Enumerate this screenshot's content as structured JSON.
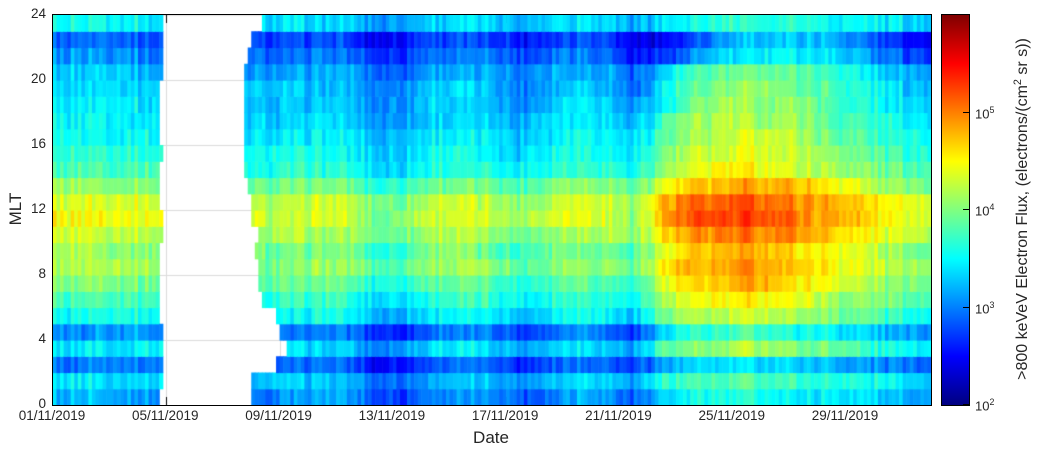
{
  "chart_data": {
    "type": "heatmap",
    "title": "",
    "xlabel": "Date",
    "ylabel": "MLT",
    "x_axis": {
      "range_days": [
        0,
        31
      ],
      "start_date": "01/11/2019",
      "ticks": [
        {
          "day": 0,
          "label": "01/11/2019"
        },
        {
          "day": 4,
          "label": "05/11/2019"
        },
        {
          "day": 8,
          "label": "09/11/2019"
        },
        {
          "day": 12,
          "label": "13/11/2019"
        },
        {
          "day": 16,
          "label": "17/11/2019"
        },
        {
          "day": 20,
          "label": "21/11/2019"
        },
        {
          "day": 24,
          "label": "25/11/2019"
        },
        {
          "day": 28,
          "label": "29/11/2019"
        }
      ]
    },
    "y_axis": {
      "range": [
        0,
        24
      ],
      "ticks": [
        0,
        4,
        8,
        12,
        16,
        20,
        24
      ]
    },
    "grid": true,
    "colorbar": {
      "colormap": "jet",
      "scale": "log",
      "range_log10": [
        2,
        6
      ],
      "ticks": [
        {
          "base": "10",
          "exp": "5",
          "log10": 5
        },
        {
          "base": "10",
          "exp": "4",
          "log10": 4
        },
        {
          "base": "10",
          "exp": "3",
          "log10": 3
        },
        {
          "base": "10",
          "exp": "2",
          "log10": 2
        }
      ],
      "label_pre": ">800 keVeV Electron Flux, (electrons/(cm",
      "label_sup": "2",
      "label_post": " sr s))"
    },
    "data_gap": {
      "start_day": 3.8,
      "end_day_per_mlt": [
        7.0,
        7.0,
        7.9,
        8.2,
        8.0,
        7.9,
        7.4,
        7.2,
        7.3,
        7.1,
        7.2,
        7.0,
        7.0,
        6.9,
        6.7,
        6.8,
        6.7,
        6.8,
        6.7,
        6.7,
        6.8,
        6.9,
        7.0,
        7.4
      ]
    },
    "mlt_bins": [
      0,
      1,
      2,
      3,
      4,
      5,
      6,
      7,
      8,
      9,
      10,
      11,
      12,
      13,
      14,
      15,
      16,
      17,
      18,
      19,
      20,
      21,
      22,
      23
    ],
    "day_bins_note": "columns = daily mean log10 flux, days 01/11/2019 .. 01/12/2019",
    "log10_flux_matrix": [
      [
        3.2,
        3.25,
        3.2,
        3.15,
        null,
        null,
        null,
        3.0,
        3.05,
        3.1,
        3.05,
        2.75,
        2.85,
        3.1,
        3.1,
        3.05,
        2.85,
        3.05,
        3.2,
        3.1,
        2.85,
        3.4,
        3.5,
        3.55,
        3.6,
        3.55,
        3.5,
        3.45,
        3.35,
        3.25,
        3.15
      ],
      [
        3.4,
        3.45,
        3.4,
        3.35,
        null,
        null,
        null,
        3.2,
        3.25,
        3.3,
        3.25,
        2.95,
        3.05,
        3.3,
        3.3,
        3.25,
        3.05,
        3.25,
        3.4,
        3.3,
        3.05,
        3.6,
        3.7,
        3.75,
        3.8,
        3.75,
        3.7,
        3.65,
        3.55,
        3.45,
        3.35
      ],
      [
        3.0,
        3.05,
        3.0,
        2.95,
        null,
        null,
        null,
        null,
        2.85,
        2.9,
        2.85,
        2.55,
        2.65,
        2.9,
        2.9,
        2.85,
        2.65,
        2.85,
        3.0,
        2.9,
        2.65,
        3.2,
        3.3,
        3.35,
        3.4,
        3.35,
        3.3,
        3.25,
        3.15,
        3.05,
        2.95
      ],
      [
        3.5,
        3.55,
        3.5,
        3.45,
        null,
        null,
        null,
        null,
        3.35,
        3.4,
        3.35,
        3.05,
        3.15,
        3.4,
        3.4,
        3.35,
        3.15,
        3.35,
        3.5,
        3.4,
        3.15,
        3.8,
        4.0,
        4.1,
        4.15,
        4.1,
        4.0,
        3.9,
        3.75,
        3.6,
        3.5
      ],
      [
        3.1,
        3.15,
        3.1,
        3.05,
        null,
        null,
        null,
        null,
        2.95,
        3.0,
        2.95,
        2.65,
        2.75,
        3.0,
        3.0,
        2.95,
        2.75,
        2.95,
        3.1,
        3.0,
        2.75,
        3.4,
        3.6,
        3.7,
        3.75,
        3.7,
        3.6,
        3.5,
        3.35,
        3.2,
        3.1
      ],
      [
        3.6,
        3.65,
        3.6,
        3.55,
        null,
        null,
        null,
        null,
        3.45,
        3.5,
        3.45,
        3.15,
        3.25,
        3.5,
        3.5,
        3.45,
        3.25,
        3.45,
        3.6,
        3.5,
        3.25,
        3.9,
        4.1,
        4.2,
        4.25,
        4.2,
        4.1,
        4.0,
        3.85,
        3.7,
        3.6
      ],
      [
        3.8,
        3.85,
        3.8,
        3.75,
        null,
        null,
        null,
        3.6,
        3.65,
        3.7,
        3.65,
        3.35,
        3.45,
        3.7,
        3.7,
        3.65,
        3.45,
        3.65,
        3.8,
        3.7,
        3.45,
        4.1,
        4.4,
        4.5,
        4.55,
        4.5,
        4.35,
        4.2,
        4.05,
        3.9,
        3.8
      ],
      [
        4.0,
        4.05,
        4.0,
        3.95,
        null,
        null,
        null,
        3.8,
        3.85,
        3.9,
        3.85,
        3.55,
        3.65,
        3.9,
        3.9,
        3.85,
        3.65,
        3.85,
        4.0,
        3.9,
        3.65,
        4.3,
        4.6,
        4.7,
        4.75,
        4.7,
        4.55,
        4.4,
        4.25,
        4.1,
        4.0
      ],
      [
        4.2,
        4.25,
        4.2,
        4.15,
        null,
        null,
        null,
        4.0,
        4.05,
        4.1,
        4.05,
        3.75,
        3.85,
        4.1,
        4.1,
        4.05,
        3.85,
        4.05,
        4.2,
        4.1,
        3.85,
        4.45,
        4.75,
        4.85,
        4.9,
        4.85,
        4.7,
        4.55,
        4.4,
        4.25,
        4.15
      ],
      [
        4.1,
        4.15,
        4.1,
        4.05,
        null,
        null,
        null,
        3.9,
        3.95,
        4.0,
        3.95,
        3.65,
        3.75,
        4.0,
        4.0,
        3.95,
        3.75,
        3.95,
        4.1,
        4.0,
        3.75,
        4.4,
        4.7,
        4.8,
        4.85,
        4.8,
        4.65,
        4.5,
        4.35,
        4.15,
        4.05
      ],
      [
        4.3,
        4.35,
        4.3,
        4.25,
        null,
        null,
        null,
        4.1,
        4.15,
        4.2,
        4.15,
        3.85,
        3.95,
        4.2,
        4.2,
        4.15,
        3.95,
        4.15,
        4.3,
        4.2,
        3.95,
        4.6,
        4.9,
        5.0,
        5.05,
        5.0,
        4.85,
        4.7,
        4.55,
        4.35,
        4.25
      ],
      [
        4.45,
        4.5,
        4.45,
        4.4,
        null,
        null,
        null,
        4.25,
        4.3,
        4.35,
        4.3,
        4.0,
        4.1,
        4.35,
        4.35,
        4.3,
        4.1,
        4.3,
        4.45,
        4.35,
        4.1,
        4.8,
        5.1,
        5.2,
        5.25,
        5.2,
        5.0,
        4.85,
        4.7,
        4.5,
        4.4
      ],
      [
        4.4,
        4.45,
        4.4,
        4.35,
        null,
        null,
        null,
        4.2,
        4.25,
        4.3,
        4.25,
        3.95,
        4.05,
        4.3,
        4.3,
        4.25,
        4.05,
        4.25,
        4.4,
        4.3,
        4.05,
        4.75,
        5.05,
        5.15,
        5.2,
        5.15,
        4.95,
        4.85,
        4.7,
        4.5,
        4.4
      ],
      [
        4.1,
        4.15,
        4.1,
        4.05,
        null,
        null,
        null,
        3.9,
        3.95,
        4.0,
        3.95,
        3.65,
        3.75,
        4.0,
        4.0,
        3.95,
        3.75,
        3.95,
        4.1,
        4.0,
        3.75,
        4.4,
        4.7,
        4.8,
        4.85,
        4.8,
        4.65,
        4.5,
        4.35,
        4.15,
        4.05
      ],
      [
        3.8,
        3.85,
        3.8,
        3.75,
        null,
        null,
        null,
        3.6,
        3.65,
        3.7,
        3.65,
        3.35,
        3.45,
        3.7,
        3.7,
        3.65,
        3.45,
        3.65,
        3.8,
        3.7,
        3.45,
        4.1,
        4.35,
        4.45,
        4.5,
        4.45,
        4.35,
        4.2,
        4.05,
        3.9,
        3.8
      ],
      [
        3.7,
        3.75,
        3.7,
        3.65,
        null,
        null,
        null,
        3.5,
        3.55,
        3.6,
        3.55,
        3.25,
        3.35,
        3.6,
        3.6,
        3.55,
        3.35,
        3.55,
        3.7,
        3.6,
        3.35,
        4.0,
        4.25,
        4.35,
        4.4,
        4.35,
        4.25,
        4.1,
        3.95,
        3.8,
        3.7
      ],
      [
        3.6,
        3.65,
        3.6,
        3.55,
        null,
        null,
        null,
        3.4,
        3.45,
        3.5,
        3.45,
        3.15,
        3.25,
        3.5,
        3.5,
        3.45,
        3.25,
        3.45,
        3.6,
        3.5,
        3.25,
        3.9,
        4.15,
        4.25,
        4.3,
        4.25,
        4.15,
        4.0,
        3.85,
        3.7,
        3.6
      ],
      [
        3.5,
        3.55,
        3.5,
        3.45,
        null,
        null,
        null,
        3.3,
        3.35,
        3.4,
        3.35,
        3.05,
        3.15,
        3.4,
        3.4,
        3.35,
        3.15,
        3.35,
        3.5,
        3.4,
        3.15,
        3.8,
        4.05,
        4.15,
        4.2,
        4.15,
        4.05,
        3.9,
        3.75,
        3.6,
        3.5
      ],
      [
        3.45,
        3.5,
        3.45,
        3.4,
        null,
        null,
        null,
        3.25,
        3.3,
        3.35,
        3.3,
        3.0,
        3.1,
        3.35,
        3.35,
        3.3,
        3.1,
        3.3,
        3.45,
        3.35,
        3.1,
        3.45,
        3.9,
        4.1,
        4.15,
        4.1,
        4.0,
        3.85,
        3.65,
        3.45,
        3.35
      ],
      [
        3.4,
        3.45,
        3.4,
        3.35,
        null,
        null,
        null,
        3.2,
        3.25,
        3.3,
        3.25,
        2.95,
        3.05,
        3.3,
        3.3,
        3.25,
        3.05,
        3.25,
        3.4,
        3.3,
        2.9,
        3.4,
        3.85,
        4.05,
        4.1,
        4.05,
        3.95,
        3.8,
        3.6,
        3.4,
        3.3
      ],
      [
        3.3,
        3.35,
        3.3,
        3.25,
        null,
        null,
        null,
        3.1,
        3.15,
        3.2,
        3.15,
        2.85,
        2.95,
        3.2,
        3.2,
        3.15,
        2.95,
        3.15,
        3.3,
        3.2,
        2.8,
        3.3,
        3.7,
        3.9,
        3.95,
        3.9,
        3.85,
        3.7,
        3.5,
        3.3,
        3.2
      ],
      [
        3.1,
        3.15,
        3.1,
        3.05,
        null,
        null,
        null,
        2.9,
        2.95,
        3.0,
        2.95,
        2.65,
        2.75,
        3.0,
        3.0,
        2.95,
        2.75,
        2.95,
        3.1,
        3.0,
        2.6,
        2.7,
        2.9,
        3.3,
        3.5,
        3.55,
        3.5,
        3.4,
        3.2,
        2.9,
        2.8
      ],
      [
        2.9,
        2.95,
        2.9,
        2.85,
        null,
        null,
        null,
        2.7,
        2.75,
        2.8,
        2.75,
        2.45,
        2.55,
        2.8,
        2.8,
        2.75,
        2.55,
        2.75,
        2.9,
        2.8,
        2.4,
        2.5,
        2.7,
        3.1,
        3.3,
        3.35,
        3.3,
        3.2,
        3.0,
        2.7,
        2.6
      ],
      [
        3.5,
        3.55,
        3.5,
        3.45,
        null,
        null,
        null,
        3.3,
        3.35,
        3.4,
        3.35,
        3.05,
        3.15,
        3.4,
        3.4,
        3.35,
        3.15,
        3.35,
        3.5,
        3.4,
        3.15,
        3.4,
        3.5,
        3.6,
        3.65,
        3.65,
        3.6,
        3.55,
        3.5,
        3.4,
        3.4
      ]
    ]
  }
}
